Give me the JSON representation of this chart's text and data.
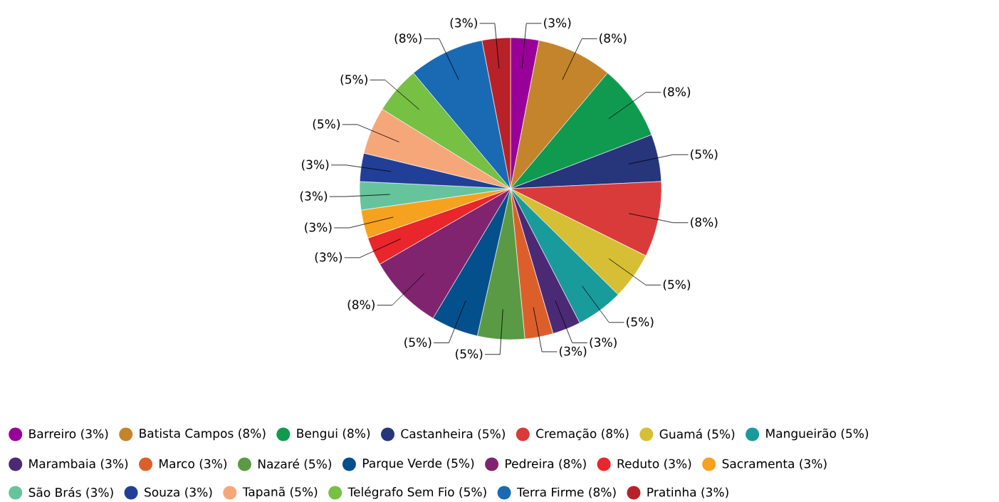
{
  "chart_data": {
    "type": "pie",
    "categories": [
      "Barreiro",
      "Batista Campos",
      "Bengui",
      "Castanheira",
      "Cremação",
      "Guamá",
      "Mangueirão",
      "Marambaia",
      "Marco",
      "Nazaré",
      "Parque Verde",
      "Pedreira",
      "Reduto",
      "Sacramenta",
      "São Brás",
      "Souza",
      "Tapanã",
      "Telégrafo Sem Fio",
      "Terra Firme",
      "Pratinha"
    ],
    "values": [
      3,
      8,
      8,
      5,
      8,
      5,
      5,
      3,
      3,
      5,
      5,
      8,
      3,
      3,
      3,
      3,
      5,
      5,
      8,
      3
    ],
    "value_labels": [
      "(3%)",
      "(8%)",
      "(8%)",
      "(5%)",
      "(8%)",
      "(5%)",
      "(5%)",
      "(3%)",
      "(3%)",
      "(5%)",
      "(5%)",
      "(8%)",
      "(3%)",
      "(3%)",
      "(3%)",
      "(3%)",
      "(5%)",
      "(5%)",
      "(8%)",
      "(3%)"
    ],
    "colors": [
      "#990099",
      "#c4842c",
      "#109a50",
      "#27357a",
      "#d93b3b",
      "#d6bf35",
      "#199b9b",
      "#4b2a75",
      "#dc5f2b",
      "#5a9a45",
      "#03508c",
      "#80246f",
      "#e8262b",
      "#f6a21f",
      "#66c49c",
      "#213f97",
      "#f6a77a",
      "#76c044",
      "#1a69b3",
      "#b82127"
    ],
    "legend": "bottom"
  }
}
